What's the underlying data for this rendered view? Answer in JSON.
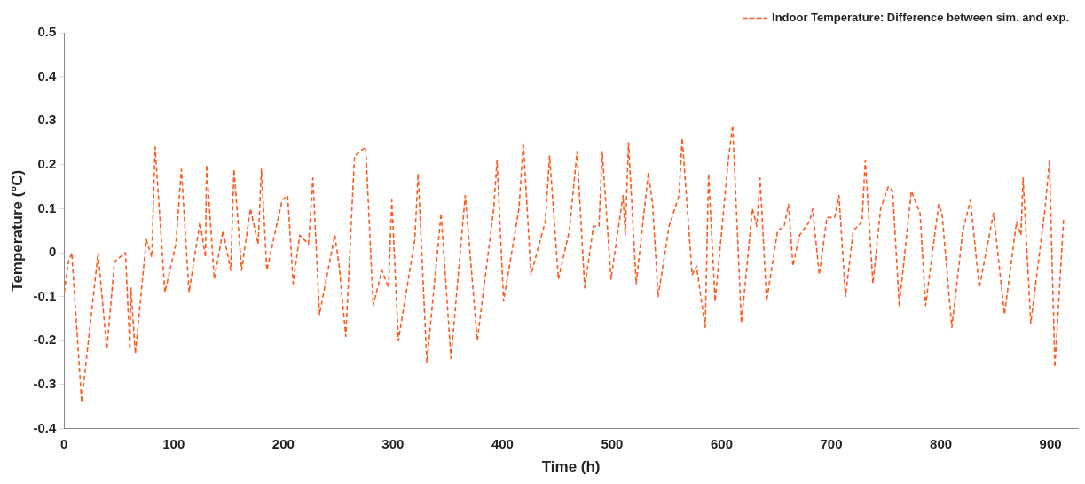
{
  "chart_data": {
    "type": "line",
    "xlabel": "Time (h)",
    "ylabel": "Temperature (°C)",
    "xlim": [
      0,
      925
    ],
    "ylim": [
      -0.4,
      0.5
    ],
    "xticks": [
      0,
      100,
      200,
      300,
      400,
      500,
      600,
      700,
      800,
      900
    ],
    "yticks": [
      -0.4,
      -0.3,
      -0.2,
      -0.1,
      0,
      0.1,
      0.2,
      0.3,
      0.4,
      0.5
    ],
    "grid": false,
    "legend": "top right",
    "marker": "none",
    "line_style": "dashed",
    "x": [
      0,
      4,
      7,
      16,
      31,
      39,
      46,
      56,
      60,
      61,
      65,
      75,
      80,
      83,
      92,
      102,
      107,
      114,
      124,
      129,
      130,
      137,
      145,
      152,
      155,
      162,
      170,
      177,
      180,
      185,
      199,
      204,
      209,
      215,
      223,
      227,
      233,
      247,
      251,
      257,
      265,
      275,
      276,
      282,
      290,
      296,
      299,
      305,
      320,
      323,
      331,
      344,
      353,
      366,
      377,
      392,
      395,
      401,
      415,
      419,
      426,
      439,
      443,
      451,
      461,
      468,
      475,
      483,
      488,
      491,
      499,
      510,
      512,
      515,
      522,
      533,
      537,
      542,
      552,
      561,
      564,
      573,
      577,
      585,
      588,
      594,
      606,
      610,
      618,
      628,
      632,
      635,
      641,
      651,
      657,
      661,
      665,
      671,
      680,
      683,
      689,
      696,
      703,
      707,
      713,
      720,
      728,
      731,
      738,
      745,
      752,
      756,
      762,
      773,
      781,
      786,
      798,
      801,
      810,
      820,
      827,
      835,
      848,
      858,
      869,
      873,
      875,
      882,
      895,
      899,
      904,
      912
    ],
    "series": [
      {
        "name": "Indoor Temperature: Difference between sim. and exp.",
        "color": "#ff5a1e",
        "values": [
          -0.09,
          -0.02,
          0.0,
          -0.34,
          0.0,
          -0.22,
          -0.02,
          0.0,
          -0.22,
          -0.08,
          -0.23,
          0.03,
          -0.01,
          0.24,
          -0.09,
          0.02,
          0.19,
          -0.09,
          0.07,
          -0.01,
          0.2,
          -0.06,
          0.05,
          -0.04,
          0.19,
          -0.04,
          0.1,
          0.02,
          0.19,
          -0.04,
          0.12,
          0.13,
          -0.07,
          0.04,
          0.02,
          0.17,
          -0.14,
          0.04,
          -0.03,
          -0.19,
          0.22,
          0.24,
          0.2,
          -0.12,
          -0.04,
          -0.08,
          0.12,
          -0.2,
          0.03,
          0.18,
          -0.25,
          0.09,
          -0.24,
          0.13,
          -0.2,
          0.1,
          0.21,
          -0.11,
          0.1,
          0.25,
          -0.05,
          0.07,
          0.22,
          -0.06,
          0.05,
          0.23,
          -0.08,
          0.06,
          0.06,
          0.23,
          -0.06,
          0.13,
          0.04,
          0.25,
          -0.07,
          0.18,
          0.11,
          -0.1,
          0.06,
          0.13,
          0.26,
          -0.05,
          -0.03,
          -0.17,
          0.18,
          -0.11,
          0.21,
          0.29,
          -0.16,
          0.1,
          0.06,
          0.17,
          -0.11,
          0.05,
          0.06,
          0.11,
          -0.03,
          0.04,
          0.07,
          0.1,
          -0.05,
          0.08,
          0.08,
          0.13,
          -0.1,
          0.05,
          0.07,
          0.21,
          -0.07,
          0.1,
          0.15,
          0.14,
          -0.12,
          0.14,
          0.09,
          -0.12,
          0.11,
          0.09,
          -0.17,
          0.05,
          0.12,
          -0.08,
          0.09,
          -0.14,
          0.07,
          0.04,
          0.17,
          -0.16,
          0.1,
          0.21,
          -0.26,
          0.08
        ]
      }
    ]
  }
}
